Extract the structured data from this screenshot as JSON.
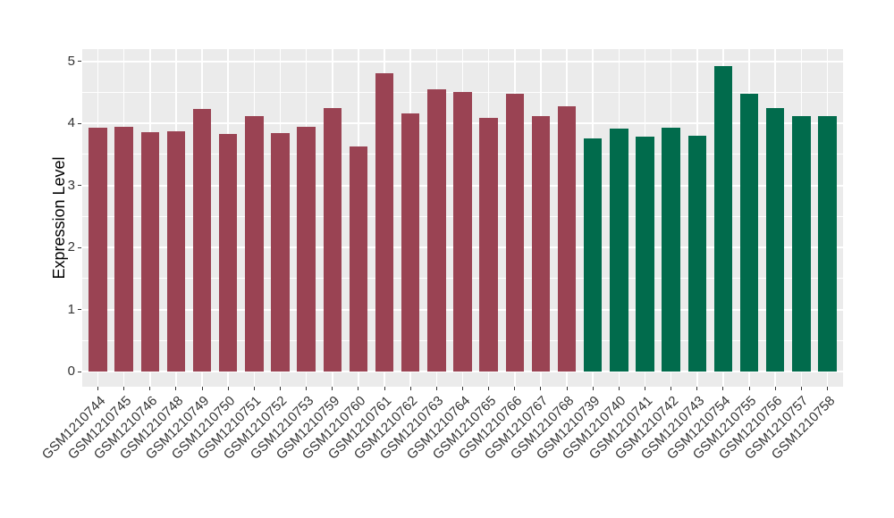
{
  "chart_data": {
    "type": "bar",
    "title": "",
    "xlabel": "",
    "ylabel": "Expression Level",
    "ylim": [
      0,
      5.19
    ],
    "yticks": [
      0,
      1,
      2,
      3,
      4,
      5
    ],
    "grid": "on",
    "legend": "none",
    "categories": [
      "GSM1210744",
      "GSM1210745",
      "GSM1210746",
      "GSM1210748",
      "GSM1210749",
      "GSM1210750",
      "GSM1210751",
      "GSM1210752",
      "GSM1210753",
      "GSM1210759",
      "GSM1210760",
      "GSM1210761",
      "GSM1210762",
      "GSM1210763",
      "GSM1210764",
      "GSM1210765",
      "GSM1210766",
      "GSM1210767",
      "GSM1210768",
      "GSM1210739",
      "GSM1210740",
      "GSM1210741",
      "GSM1210742",
      "GSM1210743",
      "GSM1210754",
      "GSM1210755",
      "GSM1210756",
      "GSM1210757",
      "GSM1210758"
    ],
    "values": [
      3.93,
      3.94,
      3.86,
      3.87,
      4.23,
      3.83,
      4.11,
      3.84,
      3.94,
      4.25,
      3.62,
      4.8,
      4.16,
      4.54,
      4.51,
      4.08,
      4.47,
      4.11,
      4.27,
      3.76,
      3.91,
      3.78,
      3.93,
      3.8,
      4.92,
      4.47,
      4.24,
      4.12,
      4.12
    ],
    "groups": [
      "maroon",
      "maroon",
      "maroon",
      "maroon",
      "maroon",
      "maroon",
      "maroon",
      "maroon",
      "maroon",
      "maroon",
      "maroon",
      "maroon",
      "maroon",
      "maroon",
      "maroon",
      "maroon",
      "maroon",
      "maroon",
      "maroon",
      "green",
      "green",
      "green",
      "green",
      "green",
      "green",
      "green",
      "green",
      "green",
      "green"
    ],
    "colors": {
      "maroon": "#9A4353",
      "green": "#016B4C",
      "panel_background": "#EBEBEB",
      "gridline": "#FFFFFF",
      "axis_text": "#333333",
      "axis_title": "#000000"
    }
  }
}
